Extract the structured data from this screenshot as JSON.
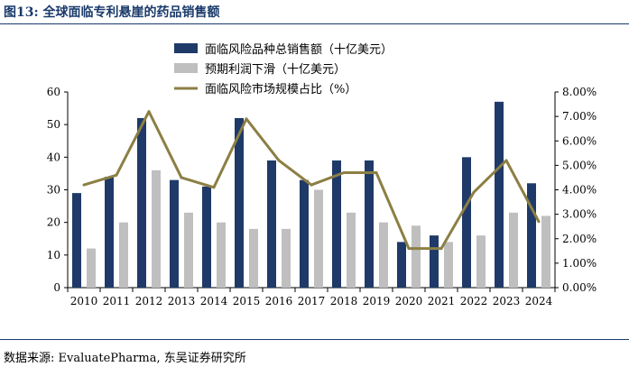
{
  "header": {
    "title": "图13: 全球面临专利悬崖的药品销售额"
  },
  "footer": {
    "source": "数据来源: EvaluatePharma, 东吴证券研究所"
  },
  "chart_data": {
    "type": "bar+line",
    "title": "全球面临专利悬崖的药品销售额",
    "categories": [
      "2010",
      "2011",
      "2012",
      "2013",
      "2014",
      "2015",
      "2016",
      "2017",
      "2018",
      "2019",
      "2020",
      "2021",
      "2022",
      "2023",
      "2024"
    ],
    "series": [
      {
        "name": "面临风险品种总销售额（十亿美元）",
        "type": "bar",
        "axis": "left",
        "color": "#1f3a68",
        "values": [
          29,
          34,
          52,
          33,
          31,
          52,
          39,
          33,
          39,
          39,
          14,
          16,
          40,
          57,
          32
        ]
      },
      {
        "name": "预期利润下滑（十亿美元）",
        "type": "bar",
        "axis": "left",
        "color": "#bfbfbf",
        "values": [
          12,
          20,
          36,
          23,
          20,
          18,
          18,
          30,
          23,
          20,
          19,
          14,
          16,
          23,
          22
        ]
      },
      {
        "name": "面临风险市场规模占比（%）",
        "type": "line",
        "axis": "right",
        "color": "#8c7f44",
        "values": [
          4.2,
          4.6,
          7.2,
          4.5,
          4.1,
          6.9,
          5.2,
          4.2,
          4.7,
          4.7,
          1.6,
          1.6,
          3.9,
          5.2,
          2.7
        ]
      }
    ],
    "ylim_left": [
      0,
      60
    ],
    "yticks_left": [
      "0",
      "10",
      "20",
      "30",
      "40",
      "50",
      "60"
    ],
    "ylim_right": [
      0,
      8
    ],
    "yticks_right": [
      "0.00%",
      "1.00%",
      "2.00%",
      "3.00%",
      "4.00%",
      "5.00%",
      "6.00%",
      "7.00%",
      "8.00%"
    ],
    "legend": "top-center",
    "grid": false
  }
}
